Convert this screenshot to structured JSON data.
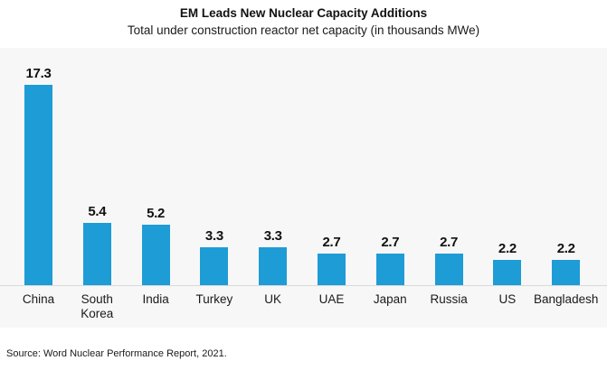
{
  "chart_data": {
    "type": "bar",
    "title": "EM Leads New Nuclear Capacity Additions",
    "subtitle": "Total under construction reactor net capacity (in thousands MWe)",
    "categories": [
      "China",
      "South Korea",
      "India",
      "Turkey",
      "UK",
      "UAE",
      "Japan",
      "Russia",
      "US",
      "Bangladesh"
    ],
    "values": [
      17.3,
      5.4,
      5.2,
      3.3,
      3.3,
      2.7,
      2.7,
      2.7,
      2.2,
      2.2
    ],
    "xlabel": "",
    "ylabel": "",
    "ylim": [
      0,
      19
    ],
    "grid": false,
    "legend": "none",
    "data_labels": true,
    "bar_color": "#1e9cd6",
    "plot_bg": "#f7f7f8",
    "axis_line_color": "#d9d9d9"
  },
  "footer": {
    "source": "Source: Word Nuclear Performance Report, 2021."
  }
}
